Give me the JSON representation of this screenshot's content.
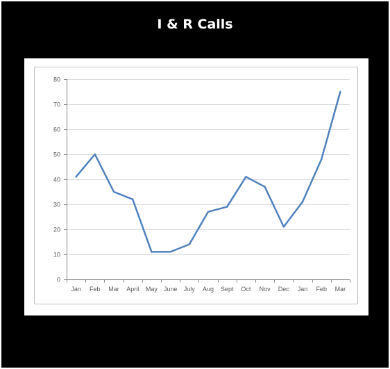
{
  "title": "I & R Calls",
  "colors": {
    "background": "#000000",
    "plot_bg": "#ffffff",
    "line": "#4f81bd",
    "grid": "#d9d9d9",
    "axis": "#868686"
  },
  "chart_data": {
    "type": "line",
    "title": "",
    "xlabel": "",
    "ylabel": "",
    "categories": [
      "Jan",
      "Feb",
      "Mar",
      "April",
      "May",
      "June",
      "July",
      "Aug",
      "Sept",
      "Oct",
      "Nov",
      "Dec",
      "Jan",
      "Feb",
      "Mar"
    ],
    "values": [
      41,
      50,
      35,
      32,
      11,
      11,
      14,
      27,
      29,
      41,
      37,
      21,
      31,
      48,
      75
    ],
    "ylim": [
      0,
      80
    ],
    "yticks": [
      0,
      10,
      20,
      30,
      40,
      50,
      60,
      70,
      80
    ],
    "grid": true,
    "legend": "none"
  }
}
